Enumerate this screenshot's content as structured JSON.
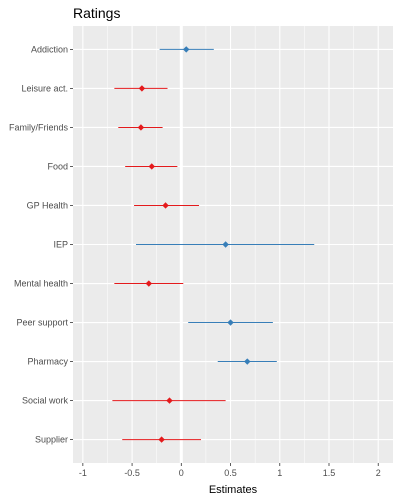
{
  "chart_data": {
    "type": "scatter",
    "title": "Ratings",
    "xlabel": "Estimates",
    "ylabel": "",
    "xlim": [
      -1.1,
      2.15
    ],
    "x_ticks": [
      "-1",
      "-0.5",
      "0",
      "0.5",
      "1",
      "1.5",
      "2"
    ],
    "x_tick_values": [
      -1,
      -0.5,
      0,
      0.5,
      1,
      1.5,
      2
    ],
    "reference_line_x": 0,
    "grid": true,
    "legend": "none",
    "colors": {
      "positive": "#377eb8",
      "negative": "#e41a1c",
      "panel": "#ebebeb",
      "grid": "#ffffff"
    },
    "points": [
      {
        "label": "Addiction",
        "estimate": 0.05,
        "low": -0.22,
        "high": 0.33,
        "sign": "positive"
      },
      {
        "label": "Leisure act.",
        "estimate": -0.4,
        "low": -0.68,
        "high": -0.14,
        "sign": "negative"
      },
      {
        "label": "Family/Friends",
        "estimate": -0.41,
        "low": -0.64,
        "high": -0.19,
        "sign": "negative"
      },
      {
        "label": "Food",
        "estimate": -0.3,
        "low": -0.57,
        "high": -0.04,
        "sign": "negative"
      },
      {
        "label": "GP Health",
        "estimate": -0.16,
        "low": -0.48,
        "high": 0.18,
        "sign": "negative"
      },
      {
        "label": "IEP",
        "estimate": 0.45,
        "low": -0.46,
        "high": 1.35,
        "sign": "positive"
      },
      {
        "label": "Mental health",
        "estimate": -0.33,
        "low": -0.68,
        "high": 0.02,
        "sign": "negative"
      },
      {
        "label": "Peer support",
        "estimate": 0.5,
        "low": 0.07,
        "high": 0.93,
        "sign": "positive"
      },
      {
        "label": "Pharmacy",
        "estimate": 0.67,
        "low": 0.37,
        "high": 0.97,
        "sign": "positive"
      },
      {
        "label": "Social work",
        "estimate": -0.12,
        "low": -0.7,
        "high": 0.45,
        "sign": "negative"
      },
      {
        "label": "Supplier",
        "estimate": -0.2,
        "low": -0.6,
        "high": 0.2,
        "sign": "negative"
      }
    ]
  }
}
